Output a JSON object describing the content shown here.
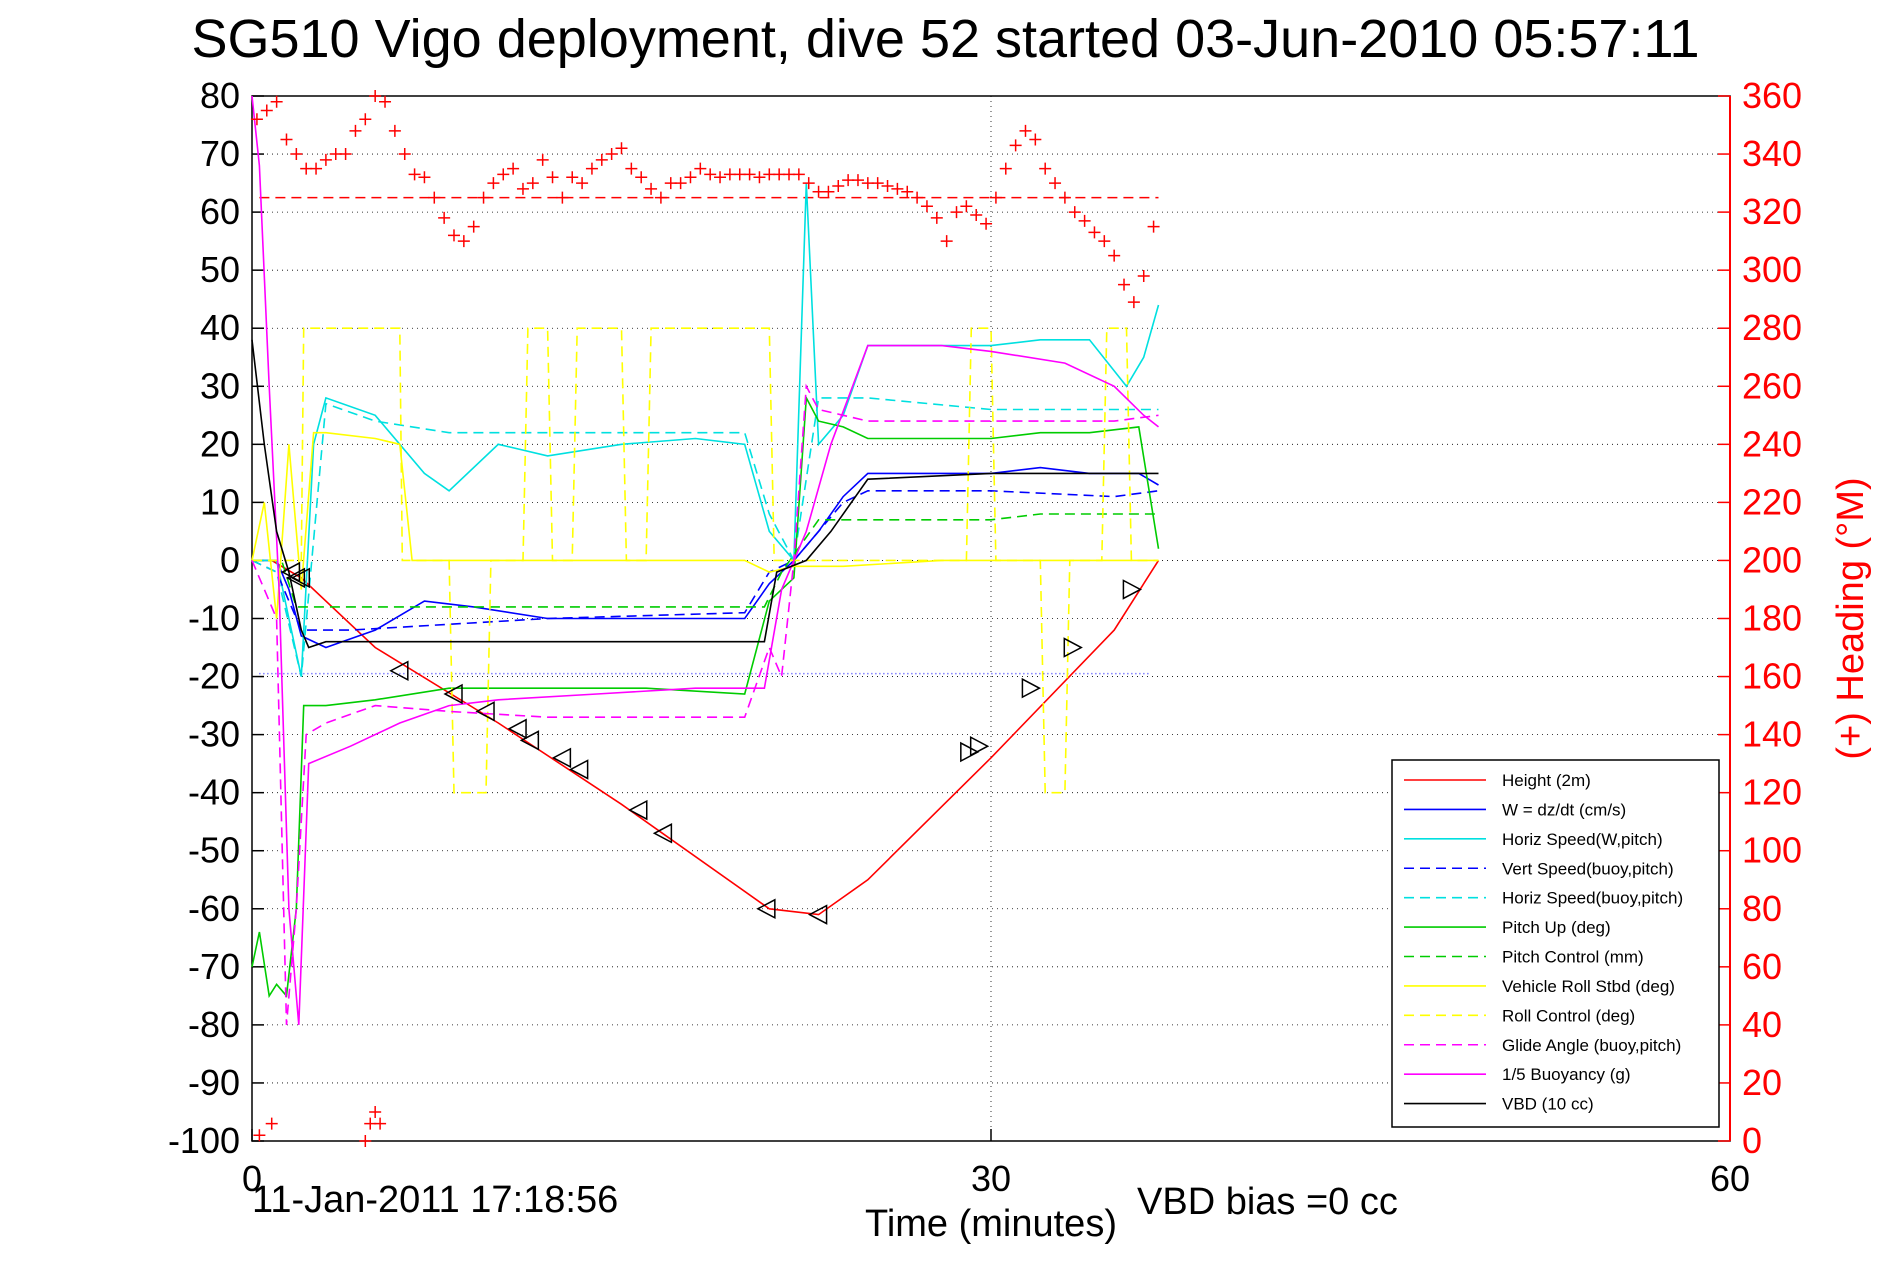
{
  "chart_data": {
    "type": "line",
    "title": "SG510 Vigo deployment, dive 52 started 03-Jun-2010 05:57:11",
    "xlabel": "Time (minutes)",
    "ylabel": "",
    "y2label": "(+) Heading (°M)",
    "xlim": [
      0,
      60
    ],
    "ylim": [
      -100,
      80
    ],
    "y2lim": [
      0,
      360
    ],
    "xticks": [
      0,
      30,
      60
    ],
    "yticks": [
      80,
      70,
      60,
      50,
      40,
      30,
      20,
      10,
      0,
      -10,
      -20,
      -30,
      -40,
      -50,
      -60,
      -70,
      -80,
      -90,
      -100
    ],
    "y2ticks": [
      360,
      340,
      320,
      300,
      280,
      260,
      240,
      220,
      200,
      180,
      160,
      140,
      120,
      100,
      80,
      60,
      40,
      20,
      0
    ],
    "grid": true,
    "legend_position": "bottom-right",
    "footer_timestamp": "11-Jan-2011 17:18:56",
    "footer_note": "VBD bias =0 cc",
    "reference_lines": [
      {
        "axis": "y2",
        "value": 325,
        "color": "#ff0000",
        "style": "dashed"
      },
      {
        "axis": "y",
        "value": -19.5,
        "color": "#4444ff",
        "style": "dotted"
      }
    ],
    "series": [
      {
        "name": "Height (2m)",
        "color": "#ff0000",
        "style": "solid",
        "x": [
          0.8,
          2,
          5,
          10,
          15,
          21,
          23,
          25,
          30,
          35,
          36.8
        ],
        "y": [
          0,
          -3,
          -15,
          -28,
          -42,
          -60,
          -61,
          -55,
          -34,
          -12,
          0
        ]
      },
      {
        "name": "W = dz/dt (cm/s)",
        "color": "#0000ff",
        "style": "solid",
        "x": [
          0,
          1,
          1.5,
          2,
          3,
          5,
          7,
          9,
          12,
          16,
          20,
          21,
          22,
          23,
          24,
          25,
          28,
          30,
          32,
          34,
          36,
          36.8
        ],
        "y": [
          0,
          0,
          -5,
          -13,
          -15,
          -12,
          -7,
          -8,
          -10,
          -10,
          -10,
          -4,
          0,
          5,
          11,
          15,
          15,
          15,
          16,
          15,
          15,
          13
        ]
      },
      {
        "name": "Horiz Speed(W,pitch)",
        "color": "#00e0e0",
        "style": "solid",
        "x": [
          0,
          1,
          1.5,
          2,
          2.5,
          3,
          5,
          7,
          8,
          10,
          12,
          15,
          18,
          20,
          21,
          22,
          22.5,
          23,
          24,
          25,
          28,
          30,
          32,
          34,
          35.5,
          36.2,
          36.8
        ],
        "y": [
          0,
          0,
          -10,
          -20,
          20,
          28,
          25,
          15,
          12,
          20,
          18,
          20,
          21,
          20,
          5,
          0,
          65,
          20,
          25,
          37,
          37,
          37,
          38,
          38,
          30,
          35,
          44
        ]
      },
      {
        "name": "Vert Speed(buoy,pitch)",
        "color": "#0000ff",
        "style": "dashed",
        "x": [
          0,
          1,
          2,
          4,
          8,
          12,
          20,
          21,
          22,
          23,
          24,
          25,
          30,
          35,
          36.8
        ],
        "y": [
          0,
          -2,
          -12,
          -12,
          -11,
          -10,
          -9,
          -2,
          0,
          5,
          10,
          12,
          12,
          11,
          12
        ]
      },
      {
        "name": "Horiz Speed(buoy,pitch)",
        "color": "#00e0e0",
        "style": "dashed",
        "x": [
          0,
          1,
          2,
          3,
          5,
          8,
          12,
          20,
          21,
          22,
          23,
          24,
          25,
          30,
          35,
          36.8
        ],
        "y": [
          0,
          -2,
          -20,
          27,
          24,
          22,
          22,
          22,
          8,
          0,
          28,
          28,
          28,
          26,
          26,
          26
        ]
      },
      {
        "name": "Pitch Up (deg)",
        "color": "#00cc00",
        "style": "solid",
        "x": [
          0,
          0.3,
          0.7,
          1,
          1.4,
          1.8,
          2.1,
          3,
          5,
          8,
          12,
          16,
          20,
          21,
          22,
          22.5,
          23,
          24,
          25,
          28,
          30,
          32,
          34,
          36,
          36.8
        ],
        "y": [
          -70,
          -64,
          -75,
          -73,
          -75,
          -60,
          -25,
          -25,
          -24,
          -22,
          -22,
          -22,
          -23,
          -7,
          -3,
          28,
          24,
          23,
          21,
          21,
          21,
          22,
          22,
          23,
          2
        ]
      },
      {
        "name": "Pitch Control (mm)",
        "color": "#00cc00",
        "style": "dashed",
        "x": [
          0,
          1.2,
          1.8,
          2.2,
          20.8,
          21.5,
          23,
          24,
          30,
          32,
          36.8
        ],
        "y": [
          0,
          0,
          -8,
          -8,
          -8,
          -2,
          7,
          7,
          7,
          8,
          8
        ]
      },
      {
        "name": "Vehicle Roll Stbd (deg)",
        "color": "#ffff00",
        "style": "solid",
        "x": [
          0,
          0.5,
          1,
          1.5,
          2,
          2.5,
          3,
          5,
          6,
          6.5,
          8,
          16,
          20,
          21,
          22,
          24,
          28,
          30,
          32,
          36,
          36.8
        ],
        "y": [
          0,
          10,
          -10,
          20,
          -5,
          22,
          22,
          21,
          20,
          0,
          0,
          0,
          0,
          -2,
          -1,
          -1,
          0,
          0,
          0,
          0,
          0
        ]
      },
      {
        "name": "Roll Control (deg)",
        "color": "#ffff00",
        "style": "dashed",
        "x": [
          0,
          2,
          2.1,
          6,
          6.1,
          8,
          8.2,
          9.5,
          9.7,
          11,
          11.2,
          12,
          12.2,
          13,
          13.2,
          15,
          15.2,
          16,
          16.2,
          21,
          21.2,
          29,
          29.2,
          30,
          30.2,
          32,
          32.2,
          33,
          33.2,
          34.5,
          34.7,
          35.5,
          35.7,
          36.8
        ],
        "y": [
          0,
          0,
          40,
          40,
          0,
          0,
          -40,
          -40,
          0,
          0,
          40,
          40,
          0,
          0,
          40,
          40,
          0,
          0,
          40,
          40,
          0,
          0,
          40,
          40,
          0,
          0,
          -40,
          -40,
          0,
          0,
          40,
          40,
          0,
          0
        ]
      },
      {
        "name": "Glide Angle (buoy,pitch)",
        "color": "#ff00ff",
        "style": "dashed",
        "x": [
          0,
          1,
          1.4,
          1.8,
          2.2,
          3,
          5,
          8,
          12,
          16,
          20,
          21,
          21.5,
          22,
          22.5,
          23,
          24,
          25,
          30,
          35,
          36.8
        ],
        "y": [
          0,
          -10,
          -80,
          -60,
          -30,
          -28,
          -25,
          -26,
          -27,
          -27,
          -27,
          -15,
          -20,
          0,
          30,
          26,
          25,
          24,
          24,
          24,
          25
        ]
      },
      {
        "name": "1/5 Buoyancy (g)",
        "color": "#ff00ff",
        "style": "solid",
        "x": [
          0,
          0.3,
          0.7,
          1.1,
          1.5,
          1.9,
          2.3,
          4,
          6,
          8,
          10,
          14,
          18,
          20,
          20.8,
          21.5,
          22.5,
          23.5,
          25,
          28,
          30,
          33,
          35,
          36.2,
          36.8
        ],
        "y": [
          80,
          68,
          30,
          -5,
          -60,
          -80,
          -35,
          -32,
          -28,
          -25,
          -24,
          -23,
          -22,
          -22,
          -22,
          -5,
          5,
          20,
          37,
          37,
          36,
          34,
          30,
          25,
          23
        ]
      },
      {
        "name": "VBD (10 cc)",
        "color": "#000000",
        "style": "solid",
        "x": [
          0,
          0.5,
          1,
          1.5,
          2,
          2.3,
          3,
          10,
          15,
          20.8,
          21.3,
          22.5,
          23.5,
          25,
          30,
          36.8
        ],
        "y": [
          38,
          20,
          5,
          -2,
          -12,
          -15,
          -14,
          -14,
          -14,
          -14,
          -2,
          0,
          5,
          14,
          15,
          15
        ]
      }
    ],
    "heading_series": {
      "name": "(+) Heading",
      "color": "#ff0000",
      "marker": "+",
      "axis": "y2",
      "x": [
        0.2,
        0.6,
        1.0,
        1.4,
        1.8,
        2.2,
        2.6,
        3.0,
        3.4,
        3.8,
        4.2,
        4.6,
        5.0,
        5.4,
        5.8,
        6.2,
        6.6,
        7.0,
        7.4,
        7.8,
        8.2,
        8.6,
        9.0,
        9.4,
        9.8,
        10.2,
        10.6,
        11.0,
        11.4,
        11.8,
        12.2,
        12.6,
        13.0,
        13.4,
        13.8,
        14.2,
        14.6,
        15.0,
        15.4,
        15.8,
        16.2,
        16.6,
        17.0,
        17.4,
        17.8,
        18.2,
        18.6,
        19.0,
        19.4,
        19.8,
        20.2,
        20.6,
        21.0,
        21.4,
        21.8,
        22.2,
        22.6,
        23.0,
        23.4,
        23.8,
        24.2,
        24.6,
        25.0,
        25.4,
        25.8,
        26.2,
        26.6,
        27.0,
        27.4,
        27.8,
        28.2,
        28.6,
        29.0,
        29.4,
        29.8,
        30.2,
        30.6,
        31.0,
        31.4,
        31.8,
        32.2,
        32.6,
        33.0,
        33.4,
        33.8,
        34.2,
        34.6,
        35.0,
        35.4,
        35.8,
        36.2,
        36.6
      ],
      "y": [
        352,
        355,
        358,
        345,
        340,
        335,
        335,
        338,
        340,
        340,
        348,
        352,
        360,
        358,
        348,
        340,
        333,
        332,
        325,
        318,
        312,
        310,
        315,
        325,
        330,
        333,
        335,
        328,
        330,
        338,
        332,
        325,
        332,
        330,
        335,
        338,
        340,
        342,
        335,
        332,
        328,
        325,
        330,
        330,
        332,
        335,
        333,
        332,
        333,
        333,
        333,
        332,
        333,
        333,
        333,
        333,
        330,
        327,
        327,
        329,
        331,
        331,
        330,
        330,
        329,
        328,
        327,
        325,
        322,
        318,
        310,
        320,
        322,
        319,
        316,
        325,
        335,
        343,
        348,
        345,
        335,
        330,
        325,
        320,
        317,
        313,
        310,
        305,
        295,
        289,
        298,
        315
      ]
    },
    "heading_outliers": {
      "axis": "y2",
      "x": [
        0.3,
        0.8,
        4.6,
        4.8,
        5.0,
        5.2
      ],
      "y": [
        2,
        6,
        0,
        6,
        10,
        6
      ]
    },
    "triangle_markers": {
      "color": "#000000",
      "x": [
        1.6,
        1.8,
        2.0,
        6.0,
        8.2,
        9.5,
        10.8,
        11.3,
        12.6,
        13.3,
        15.7,
        16.7,
        20.9,
        23.0,
        29.1,
        29.5,
        31.6,
        33.3,
        35.7
      ],
      "y": [
        -2,
        -3,
        -3,
        -19,
        -23,
        -26,
        -29,
        -31,
        -34,
        -36,
        -43,
        -47,
        -60,
        -61,
        -33,
        -32,
        -22,
        -15,
        -5
      ]
    }
  }
}
